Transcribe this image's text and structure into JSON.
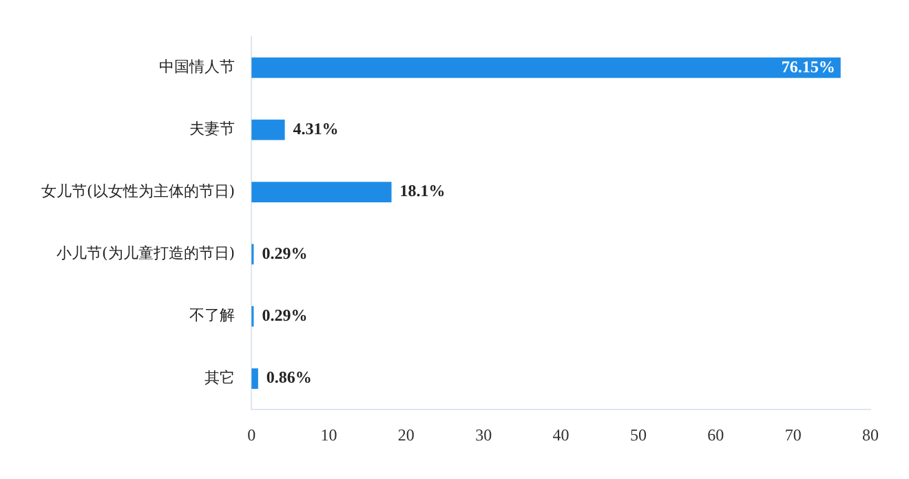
{
  "chart_data": {
    "type": "bar",
    "orientation": "horizontal",
    "categories": [
      "中国情人节",
      "夫妻节",
      "女儿节(以女性为主体的节日)",
      "小儿节(为儿童打造的节日)",
      "不了解",
      "其它"
    ],
    "values": [
      76.15,
      4.31,
      18.1,
      0.29,
      0.29,
      0.86
    ],
    "value_labels": [
      "76.15%",
      "4.31%",
      "18.1%",
      "0.29%",
      "0.29%",
      "0.86%"
    ],
    "color": "#1e8ce6",
    "xlim": [
      0,
      80
    ],
    "xticks": [
      0,
      10,
      20,
      30,
      40,
      50,
      60,
      70,
      80
    ],
    "grid": false,
    "legend": false
  }
}
